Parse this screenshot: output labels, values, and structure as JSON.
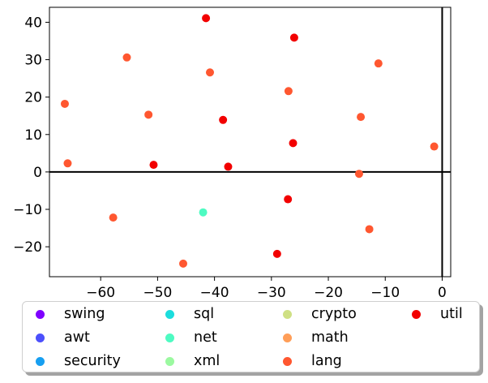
{
  "chart_data": {
    "type": "scatter",
    "xlim": [
      -69,
      1.5
    ],
    "ylim": [
      -28,
      44
    ],
    "xticks": [
      -60,
      -50,
      -40,
      -30,
      -20,
      -10,
      0
    ],
    "yticks": [
      -20,
      -10,
      0,
      10,
      20,
      30,
      40
    ],
    "xtick_labels": [
      "−60",
      "−50",
      "−40",
      "−30",
      "−20",
      "−10",
      "0"
    ],
    "ytick_labels": [
      "−20",
      "−10",
      "0",
      "10",
      "20",
      "30",
      "40"
    ],
    "reference_lines": {
      "x": 0,
      "y": 0
    },
    "grid": false,
    "legend_position": "below",
    "series": [
      {
        "name": "swing",
        "color": "#7f00ff",
        "points": []
      },
      {
        "name": "awt",
        "color": "#4c50fc",
        "points": []
      },
      {
        "name": "security",
        "color": "#179ff1",
        "points": []
      },
      {
        "name": "sql",
        "color": "#1cdddd",
        "points": []
      },
      {
        "name": "net",
        "color": "#4efbc2",
        "points": [
          [
            -42,
            -10.8
          ]
        ]
      },
      {
        "name": "xml",
        "color": "#9bf9a0",
        "points": []
      },
      {
        "name": "crypto",
        "color": "#cfe084",
        "points": []
      },
      {
        "name": "math",
        "color": "#ff9e58",
        "points": []
      },
      {
        "name": "lang",
        "color": "#ff5730",
        "points": [
          [
            -55.4,
            30.6
          ],
          [
            -40.8,
            26.6
          ],
          [
            -11.2,
            29.0
          ],
          [
            -66.3,
            18.2
          ],
          [
            -51.6,
            15.3
          ],
          [
            -27.0,
            21.6
          ],
          [
            -14.3,
            14.7
          ],
          [
            -65.8,
            2.3
          ],
          [
            -1.4,
            6.8
          ],
          [
            -14.6,
            -0.5
          ],
          [
            -57.8,
            -12.2
          ],
          [
            -12.8,
            -15.3
          ],
          [
            -45.5,
            -24.5
          ]
        ]
      },
      {
        "name": "util",
        "color": "#f20000",
        "points": [
          [
            -41.5,
            41.1
          ],
          [
            -26.0,
            35.9
          ],
          [
            -38.5,
            13.9
          ],
          [
            -26.2,
            7.7
          ],
          [
            -50.7,
            1.9
          ],
          [
            -37.6,
            1.4
          ],
          [
            -27.1,
            -7.3
          ],
          [
            -29.0,
            -21.9
          ]
        ]
      }
    ]
  }
}
